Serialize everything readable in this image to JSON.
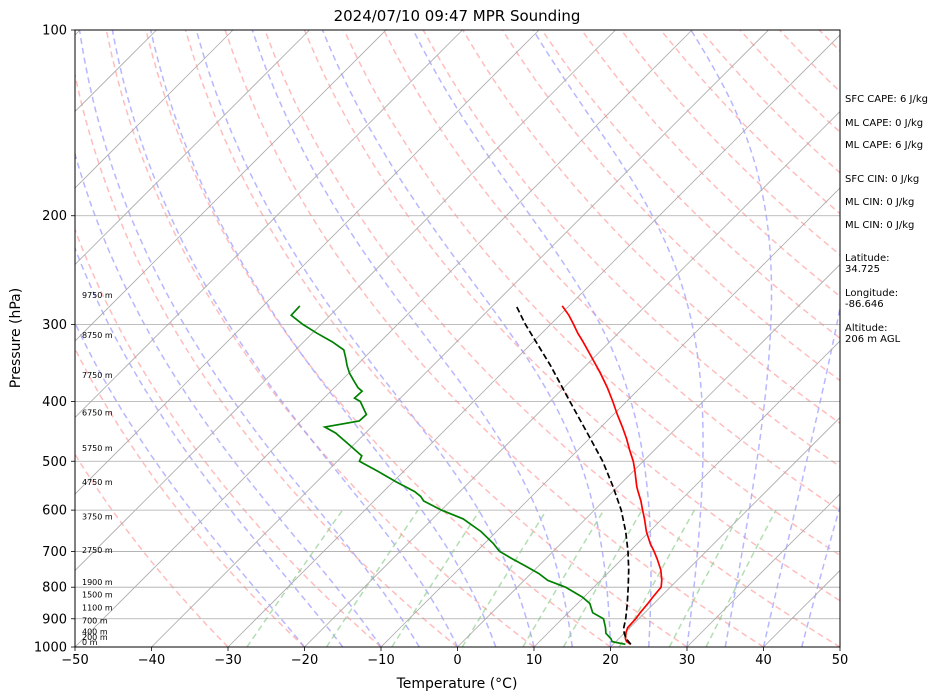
{
  "chart_data": {
    "type": "line",
    "title": "2024/07/10 09:47 MPR Sounding",
    "xlabel": "Temperature (°C)",
    "ylabel": "Pressure (hPa)",
    "xlim": [
      -50,
      50
    ],
    "ylim": [
      1000,
      100
    ],
    "y_scale": "log",
    "x_ticks": [
      -50,
      -40,
      -30,
      -20,
      -10,
      0,
      10,
      20,
      30,
      40,
      50
    ],
    "x_tick_labels": [
      "−50",
      "−40",
      "−30",
      "−20",
      "−10",
      "0",
      "10",
      "20",
      "30",
      "40",
      "50"
    ],
    "y_ticks": [
      1000,
      900,
      800,
      700,
      600,
      500,
      400,
      300,
      200,
      100
    ],
    "y_tick_labels": [
      "1000",
      "900",
      "800",
      "700",
      "600",
      "500",
      "400",
      "300",
      "200",
      "100"
    ],
    "grid": true,
    "skew": "isotherms skewed 45°",
    "background_lines": {
      "isotherms": {
        "color": "#aaaaaa",
        "style": "solid"
      },
      "dry_adiabats": {
        "color": "#ff9999",
        "style": "dashed"
      },
      "moist_adiabats": {
        "color": "#9999ff",
        "style": "dashed"
      },
      "mixing_ratio_lines": {
        "color": "#88cc88",
        "style": "dashed"
      }
    },
    "series": [
      {
        "role": "temperature",
        "color": "#ff0000",
        "style": "solid",
        "pressure": [
          990,
          980,
          970,
          950,
          930,
          900,
          880,
          850,
          830,
          800,
          780,
          750,
          720,
          700,
          680,
          650,
          620,
          600,
          580,
          560,
          550,
          520,
          500,
          480,
          460,
          440,
          420,
          400,
          380,
          360,
          340,
          320,
          310,
          300,
          290,
          280
        ],
        "temperature": [
          22.3,
          21.4,
          20.9,
          20.2,
          19.7,
          19.6,
          19.4,
          19.2,
          19.0,
          18.8,
          18.0,
          16.5,
          14.6,
          13.2,
          11.7,
          9.6,
          7.7,
          6.3,
          4.9,
          3.3,
          2.5,
          0.3,
          -1.3,
          -3.2,
          -5.1,
          -7.2,
          -9.5,
          -11.8,
          -14.3,
          -17.1,
          -20.2,
          -23.5,
          -25.3,
          -27.0,
          -28.8,
          -30.9
        ]
      },
      {
        "role": "dewpoint",
        "color": "#008000",
        "style": "solid",
        "pressure": [
          990,
          980,
          970,
          950,
          930,
          900,
          880,
          850,
          830,
          800,
          780,
          760,
          740,
          720,
          700,
          680,
          650,
          620,
          600,
          580,
          570,
          560,
          540,
          520,
          500,
          490,
          470,
          450,
          440,
          430,
          420,
          400,
          395,
          385,
          380,
          370,
          360,
          350,
          340,
          330,
          320,
          310,
          300,
          290,
          280
        ],
        "temperature": [
          21.6,
          19.5,
          19.0,
          17.6,
          16.8,
          15.4,
          13.2,
          11.6,
          9.8,
          6.3,
          3.1,
          1.0,
          -1.6,
          -4.3,
          -7.0,
          -8.8,
          -12.0,
          -16.0,
          -20.0,
          -23.5,
          -24.5,
          -25.9,
          -29.6,
          -33.2,
          -37.1,
          -37.5,
          -40.6,
          -43.9,
          -46.1,
          -42.4,
          -42.3,
          -44.8,
          -46.0,
          -45.9,
          -46.9,
          -48.4,
          -49.9,
          -51.2,
          -52.4,
          -53.7,
          -56.3,
          -59.4,
          -62.4,
          -65.1,
          -65.2
        ]
      },
      {
        "role": "parcel",
        "color": "#000000",
        "style": "dashed",
        "pressure": [
          990,
          970,
          950,
          930,
          900,
          850,
          800,
          750,
          700,
          650,
          600,
          550,
          500,
          450,
          400,
          350,
          300,
          280
        ],
        "temperature": [
          22.3,
          21.0,
          20.0,
          19.2,
          18.3,
          16.5,
          14.5,
          12.3,
          9.8,
          6.9,
          3.5,
          -0.6,
          -5.3,
          -11.0,
          -17.4,
          -24.6,
          -33.3,
          -36.9
        ]
      }
    ],
    "height_labels": [
      {
        "text": "0 m",
        "pressure": 1000
      },
      {
        "text": "200 m",
        "pressure": 982
      },
      {
        "text": "400 m",
        "pressure": 962
      },
      {
        "text": "700 m",
        "pressure": 923
      },
      {
        "text": "1100 m",
        "pressure": 880
      },
      {
        "text": "1500 m",
        "pressure": 838
      },
      {
        "text": "1900 m",
        "pressure": 800
      },
      {
        "text": "2750 m",
        "pressure": 710
      },
      {
        "text": "3750 m",
        "pressure": 626
      },
      {
        "text": "4750 m",
        "pressure": 550
      },
      {
        "text": "5750 m",
        "pressure": 485
      },
      {
        "text": "6750 m",
        "pressure": 425
      },
      {
        "text": "7750 m",
        "pressure": 369
      },
      {
        "text": "8750 m",
        "pressure": 318
      },
      {
        "text": "9750 m",
        "pressure": 274
      }
    ],
    "annotations": [
      "SFC CAPE: 6 J/kg",
      "ML CAPE: 0 J/kg",
      "ML CAPE: 6 J/kg",
      "SFC CIN: 0 J/kg",
      "ML CIN: 0 J/kg",
      "ML CIN: 0 J/kg",
      "Latitude:\n34.725",
      "Longitude:\n-86.646",
      "Altitude:\n206 m AGL"
    ]
  }
}
